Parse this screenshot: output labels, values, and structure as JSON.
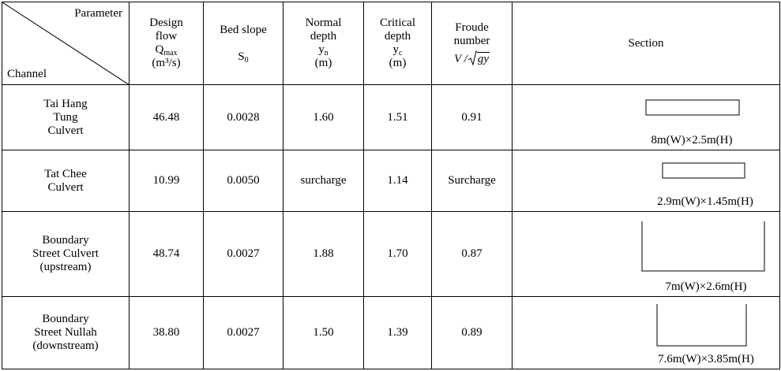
{
  "table": {
    "corner": {
      "top": "Parameter",
      "bottom": "Channel"
    },
    "headers": [
      {
        "label": "Design flow",
        "symbol": "Q",
        "sub": "max",
        "unit": "(m³/s)"
      },
      {
        "label": "Bed slope",
        "symbol": "S",
        "sub": "0"
      },
      {
        "label": "Normal depth",
        "symbol": "y",
        "sub": "n",
        "unit": "(m)"
      },
      {
        "label": "Critical depth",
        "symbol": "y",
        "sub": "c",
        "unit": "(m)"
      },
      {
        "label": "Froude number",
        "formula": [
          "V /",
          "gy"
        ]
      },
      {
        "label": "Section"
      }
    ],
    "rows": [
      {
        "channel": [
          "Tai Hang",
          "Tung",
          "Culvert"
        ],
        "cells": [
          "46.48",
          "0.0028",
          "1.60",
          "1.51",
          "0.91"
        ],
        "section": "8m(W)×2.5m(H)"
      },
      {
        "channel": [
          "Tat Chee",
          "Culvert"
        ],
        "cells": [
          "10.99",
          "0.0050",
          "surcharge",
          "1.14",
          "Surcharge"
        ],
        "section": "2.9m(W)×1.45m(H)"
      },
      {
        "channel": [
          "Boundary",
          "Street Culvert",
          "(upstream)"
        ],
        "cells": [
          "48.74",
          "0.0027",
          "1.88",
          "1.70",
          "0.87"
        ],
        "section": "7m(W)×2.6m(H)"
      },
      {
        "channel": [
          "Boundary",
          "Street Nullah",
          "(downstream)"
        ],
        "cells": [
          "38.80",
          "0.0027",
          "1.50",
          "1.39",
          "0.89"
        ],
        "section": "7.6m(W)×3.85m(H)"
      }
    ]
  }
}
